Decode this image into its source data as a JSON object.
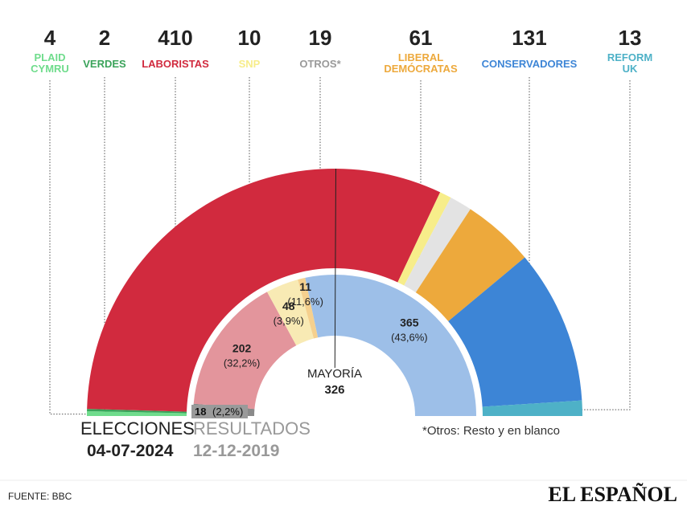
{
  "chart_data": [
    {
      "type": "half-donut",
      "categories": [
        "PLAID CYMRU",
        "VERDES",
        "LABORISTAS",
        "SNP",
        "OTROS*",
        "LIBERAL DEMÓCRATAS",
        "CONSERVADORES",
        "REFORM UK"
      ],
      "values": [
        4,
        2,
        410,
        10,
        19,
        61,
        131,
        13
      ],
      "colors": [
        "#6fdc8c",
        "#3aa35a",
        "#d12a3e",
        "#f7ed8a",
        "#e3e3e3",
        "#eda93c",
        "#3d85d6",
        "#4eb1c7"
      ],
      "caption": "ELECCIONES",
      "date": "04-07-2024",
      "majority_label": "MAYORÍA",
      "majority": 326
    },
    {
      "type": "half-donut",
      "values": [
        18,
        202,
        48,
        11,
        365
      ],
      "colors": [
        "#8a8a8a",
        "#e3959c",
        "#f8eab4",
        "#f5d08e",
        "#9dbfe8"
      ],
      "share_labels": [
        "(2,2%)",
        "(32,2%)",
        "(3,9%)",
        "(11,6%)",
        "(43,6%)"
      ],
      "caption": "RESULTADOS",
      "date": "12-12-2019"
    }
  ],
  "note": "*Otros: Resto y en blanco",
  "source": "FUENTE: BBC",
  "brand": "EL ESPAÑOL"
}
